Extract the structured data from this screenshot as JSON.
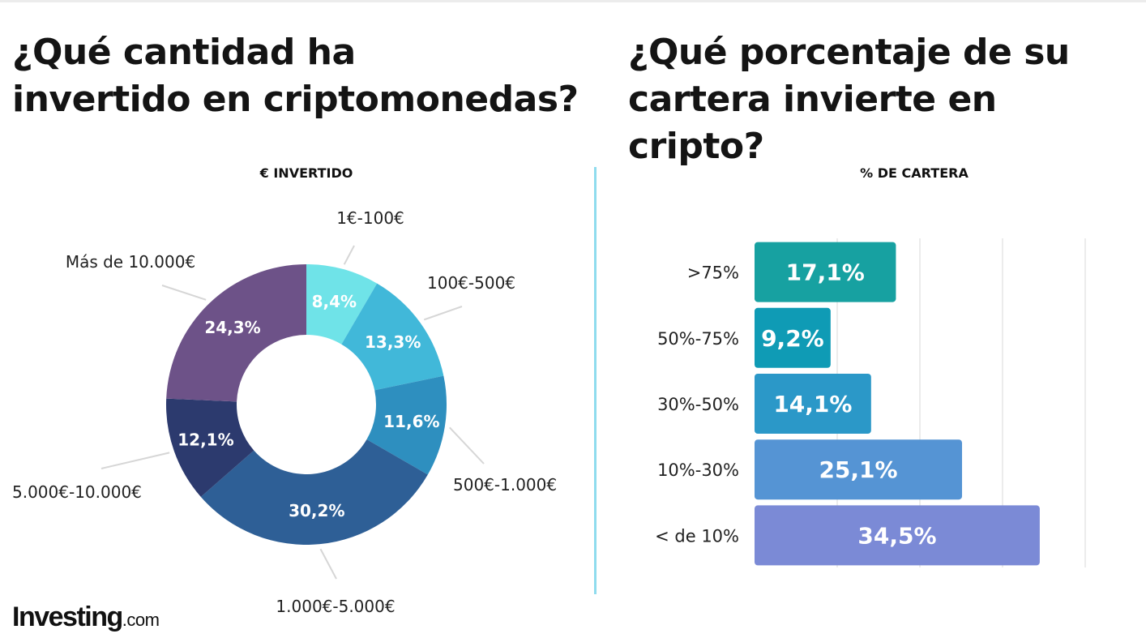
{
  "left_panel": {
    "title_line1": "¿Qué cantidad ha",
    "title_line2": "invertido en criptomonedas?",
    "subtitle": "€ INVERTIDO"
  },
  "right_panel": {
    "title_line1": "¿Qué porcentaje de su",
    "title_line2": "cartera invierte en cripto?",
    "subtitle": "% DE CARTERA"
  },
  "brand": {
    "name": "Investing",
    "domain": ".com"
  },
  "chart_data": [
    {
      "type": "pie",
      "variant": "donut",
      "title": "€ INVERTIDO",
      "slices": [
        {
          "label": "1€-100€",
          "value": 8.4,
          "value_label": "8,4%",
          "color": "#6fe3e8"
        },
        {
          "label": "100€-500€",
          "value": 13.3,
          "value_label": "13,3%",
          "color": "#41b8d9"
        },
        {
          "label": "500€-1.000€",
          "value": 11.6,
          "value_label": "11,6%",
          "color": "#2e8fbf"
        },
        {
          "label": "1.000€-5.000€",
          "value": 30.2,
          "value_label": "30,2%",
          "color": "#2e5f96"
        },
        {
          "label": "5.000€-10.000€",
          "value": 12.1,
          "value_label": "12,1%",
          "color": "#2c3a6e"
        },
        {
          "label": "Más de 10.000€",
          "value": 24.3,
          "value_label": "24,3%",
          "color": "#6d5288"
        }
      ]
    },
    {
      "type": "bar",
      "orientation": "horizontal",
      "title": "% DE CARTERA",
      "categories": [
        ">75%",
        "50%-75%",
        "30%-50%",
        "10%-30%",
        "< de 10%"
      ],
      "values": [
        17.1,
        9.2,
        14.1,
        25.1,
        34.5
      ],
      "value_labels": [
        "17,1%",
        "9,2%",
        "14,1%",
        "25,1%",
        "34,5%"
      ],
      "colors": [
        "#17a1a1",
        "#0f9bb5",
        "#2b98c8",
        "#5594d4",
        "#7b8ad6"
      ],
      "xlim": [
        0,
        40
      ],
      "grid": true
    }
  ]
}
